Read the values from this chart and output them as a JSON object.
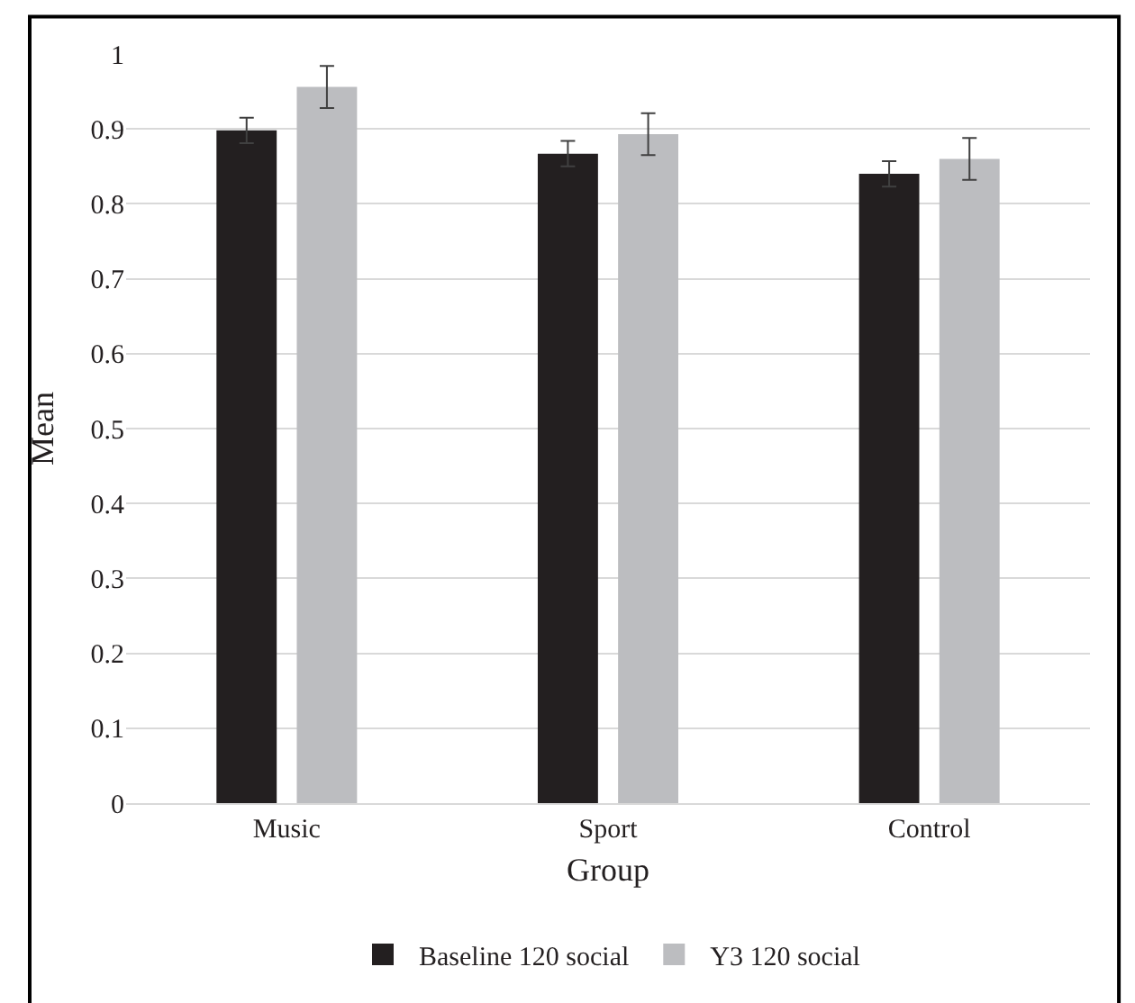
{
  "chart_data": {
    "type": "bar",
    "xlabel": "Group",
    "ylabel": "Mean",
    "categories": [
      "Music",
      "Sport",
      "Control"
    ],
    "series": [
      {
        "name": "Baseline 120 social",
        "color": "#231f20",
        "values": [
          0.898,
          0.867,
          0.84
        ],
        "errors": [
          0.017,
          0.017,
          0.017
        ]
      },
      {
        "name": "Y3 120 social",
        "color": "#bcbdc0",
        "values": [
          0.956,
          0.893,
          0.86
        ],
        "errors": [
          0.028,
          0.028,
          0.028
        ]
      }
    ],
    "ylim": [
      0,
      1
    ],
    "yticks": [
      0,
      0.1,
      0.2,
      0.3,
      0.4,
      0.5,
      0.6,
      0.7,
      0.8,
      0.9,
      1
    ],
    "grid": "y",
    "legend": "bottom"
  }
}
